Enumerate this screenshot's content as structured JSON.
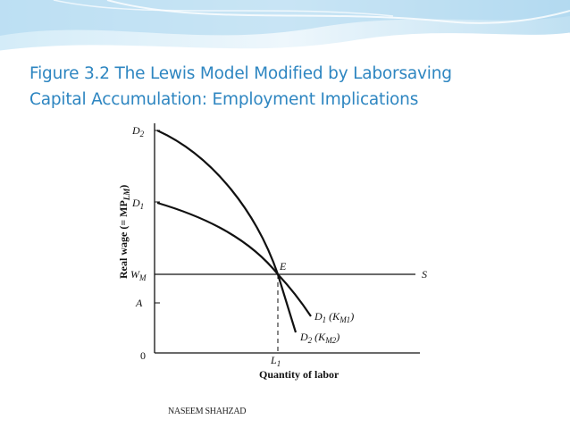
{
  "slide": {
    "title_line1": "Figure 3.2 The Lewis Model Modified by Laborsaving",
    "title_line2": "Capital Accumulation: Employment Implications",
    "footer": "NASEEM SHAHZAD"
  },
  "colors": {
    "title": "#2e86c1",
    "banner_light": "#e8f4fb",
    "banner_mid": "#bfe0f2",
    "banner_dark": "#8ecae6",
    "ink": "#111111"
  },
  "figure": {
    "y_axis_label": "Real wage (= MP",
    "y_axis_label_sub": "LM",
    "y_axis_label_end": ")",
    "x_axis_label": "Quantity of labor",
    "origin_label": "0",
    "y_ticks": {
      "D2": {
        "main": "D",
        "sub": "2"
      },
      "D1": {
        "main": "D",
        "sub": "1"
      },
      "WM": {
        "main": "W",
        "sub": "M"
      },
      "A": {
        "main": "A"
      }
    },
    "x_ticks": {
      "L1": {
        "main": "L",
        "sub": "1"
      }
    },
    "point_E": "E",
    "line_S": "S",
    "curve_D1_label": {
      "main": "D",
      "sub": "1",
      "paren_main": "K",
      "paren_sub": "M1"
    },
    "curve_D2_label": {
      "main": "D",
      "sub": "2",
      "paren_main": "K",
      "paren_sub": "M2"
    }
  }
}
